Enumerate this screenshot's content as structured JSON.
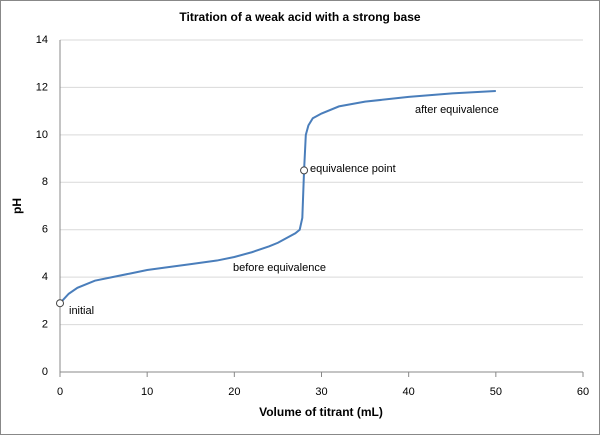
{
  "chart_data": {
    "type": "line",
    "title": "Titration of a weak acid with a strong base",
    "x_label": "Volume of titrant (mL)",
    "y_label": "pH",
    "x": [
      0,
      1,
      2,
      4,
      6,
      8,
      10,
      12,
      15,
      18,
      20,
      22,
      24,
      25,
      26,
      27,
      27.5,
      27.8,
      28,
      28.2,
      28.5,
      29,
      30,
      32,
      35,
      40,
      45,
      50
    ],
    "series": [
      {
        "name": "pH",
        "color": "#4a7ebb",
        "values": [
          2.9,
          3.3,
          3.55,
          3.85,
          4.0,
          4.15,
          4.3,
          4.4,
          4.55,
          4.7,
          4.85,
          5.05,
          5.3,
          5.45,
          5.65,
          5.85,
          6.0,
          6.5,
          8.5,
          10.0,
          10.4,
          10.7,
          10.9,
          11.2,
          11.4,
          11.6,
          11.75,
          11.85
        ]
      }
    ],
    "markers": [
      {
        "x": 0,
        "y": 2.9
      },
      {
        "x": 28,
        "y": 8.5
      }
    ],
    "annotations": [
      "initial",
      "equivalence point",
      "before equivalence",
      "after equivalence"
    ],
    "xlim": [
      0,
      60
    ],
    "xticks": [
      0,
      10,
      20,
      30,
      40,
      50,
      60
    ],
    "ylim": [
      0,
      14
    ],
    "yticks": [
      0,
      2,
      4,
      6,
      8,
      10,
      12,
      14
    ],
    "grid": true
  }
}
